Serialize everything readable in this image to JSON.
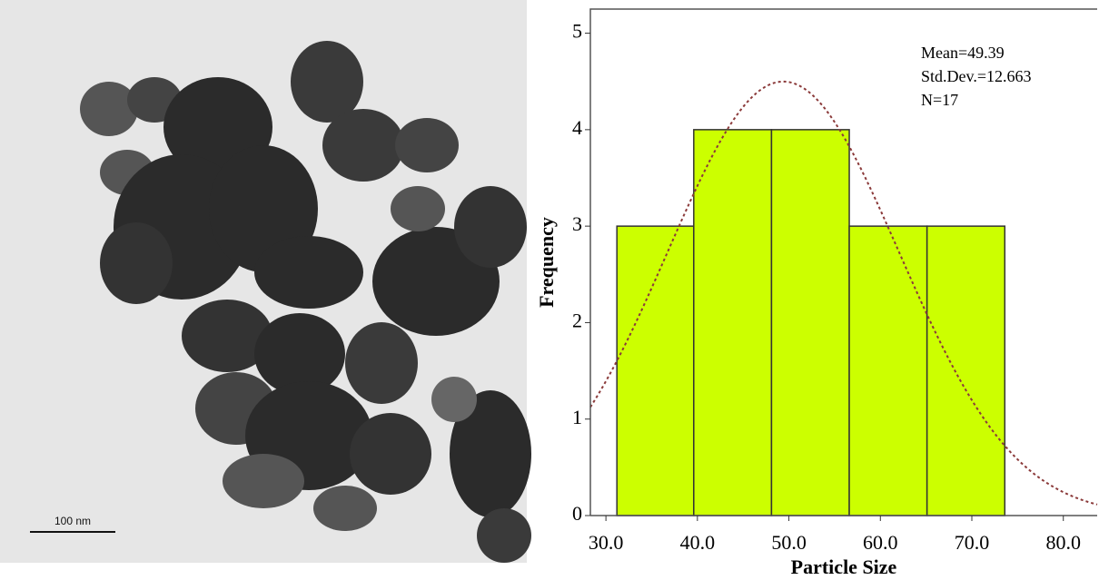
{
  "micrograph": {
    "scale_label": "100 nm"
  },
  "chart_data": {
    "type": "histogram",
    "x_label": "Particle Size",
    "y_label": "Frequency",
    "bins": [
      31.2,
      39.6,
      48.1,
      56.6,
      65.1,
      73.6
    ],
    "values": [
      3,
      4,
      4,
      3,
      3
    ],
    "color": "#ccff00",
    "edge_color": "#333333",
    "curve_color": "#8b3a3a",
    "xlim": [
      28.3,
      83.7
    ],
    "ylim": [
      0,
      5.25
    ],
    "xticks": [
      {
        "value": 30,
        "label": "30.0"
      },
      {
        "value": 40,
        "label": "40.0"
      },
      {
        "value": 50,
        "label": "50.0"
      },
      {
        "value": 60,
        "label": "60.0"
      },
      {
        "value": 70,
        "label": "70.0"
      },
      {
        "value": 80,
        "label": "80.0"
      }
    ],
    "yticks": [
      0,
      1,
      2,
      3,
      4,
      5
    ],
    "stats": {
      "mean": {
        "value": 49.39,
        "label": "Mean=49.39"
      },
      "std": {
        "value": 12.663,
        "label": "Std.Dev.=12.663"
      },
      "n": {
        "value": 17,
        "label": "N=17"
      }
    }
  }
}
